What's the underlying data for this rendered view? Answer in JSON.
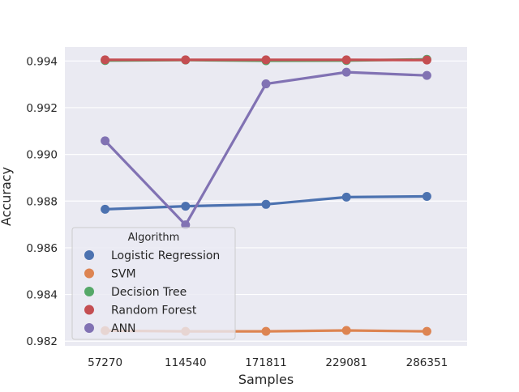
{
  "chart_data": {
    "type": "line",
    "xlabel": "Samples",
    "ylabel": "Accuracy",
    "categories": [
      "57270",
      "114540",
      "171811",
      "229081",
      "286351"
    ],
    "ylim": [
      0.9818,
      0.9946
    ],
    "yticks": [
      "0.982",
      "0.984",
      "0.986",
      "0.988",
      "0.990",
      "0.992",
      "0.994"
    ],
    "ytick_values": [
      0.982,
      0.984,
      0.986,
      0.988,
      0.99,
      0.992,
      0.994
    ],
    "grid": true,
    "legend": {
      "title": "Algorithm",
      "placement": "lower-left"
    },
    "series": [
      {
        "name": "Logistic Regression",
        "color": "#4c72b0",
        "values": [
          0.98765,
          0.98778,
          0.98786,
          0.98817,
          0.9882
        ]
      },
      {
        "name": "SVM",
        "color": "#dd8452",
        "values": [
          0.98245,
          0.98242,
          0.98242,
          0.98246,
          0.98242
        ]
      },
      {
        "name": "Decision Tree",
        "color": "#55a868",
        "values": [
          0.99402,
          0.99404,
          0.99401,
          0.99402,
          0.99407
        ]
      },
      {
        "name": "Random Forest",
        "color": "#c44e52",
        "values": [
          0.99405,
          0.99405,
          0.99405,
          0.99405,
          0.99404
        ]
      },
      {
        "name": "ANN",
        "color": "#8172b3",
        "values": [
          0.99058,
          0.98698,
          0.99302,
          0.99352,
          0.99338
        ]
      }
    ]
  }
}
